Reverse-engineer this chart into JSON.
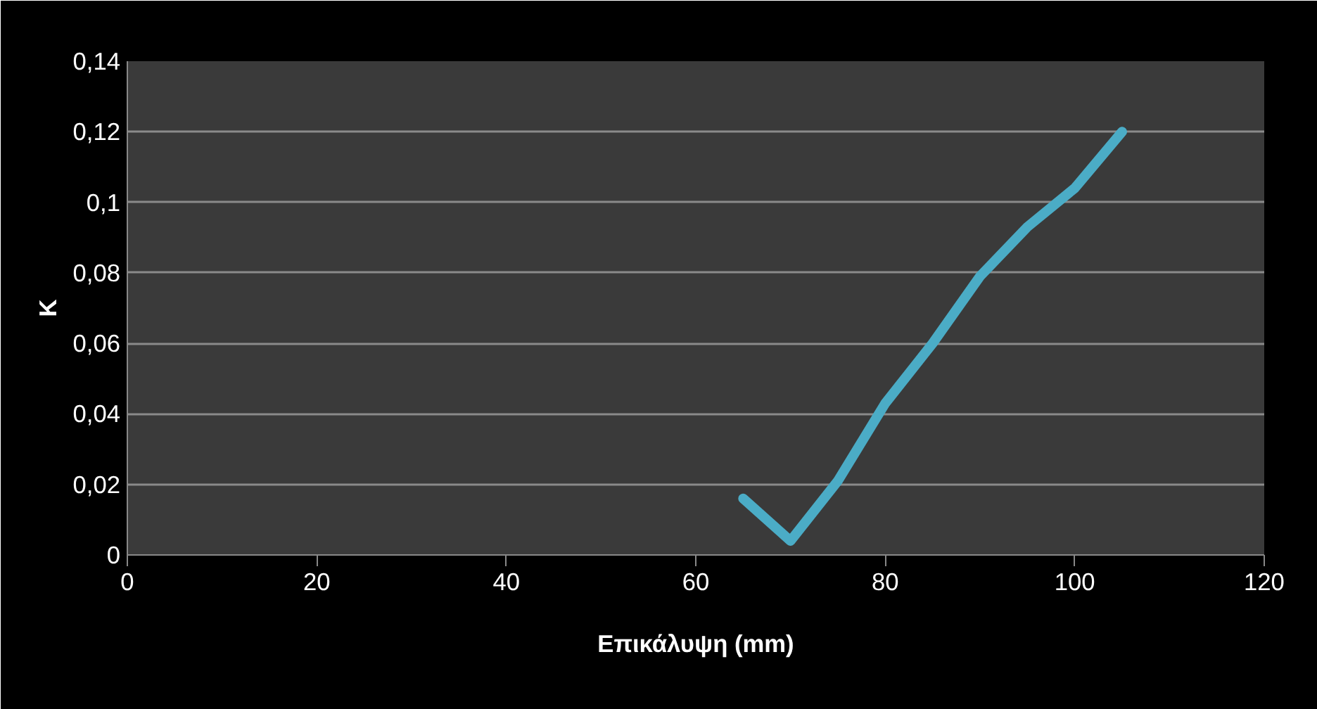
{
  "chart_data": {
    "type": "line",
    "xlabel": "Επικάλυψη (mm)",
    "ylabel": "K",
    "x": [
      65,
      70,
      75,
      80,
      85,
      90,
      95,
      100,
      105
    ],
    "series": [
      {
        "color": "#4bacc6",
        "values": [
          0.016,
          0.004,
          0.021,
          0.043,
          0.06,
          0.079,
          0.093,
          0.104,
          0.12
        ]
      }
    ],
    "xlim": [
      0,
      120
    ],
    "xticks": [
      0,
      20,
      40,
      60,
      80,
      100,
      120
    ],
    "ylim": [
      0,
      0.14
    ],
    "yticks": [
      {
        "value": 0,
        "label": "0"
      },
      {
        "value": 0.02,
        "label": "0,02"
      },
      {
        "value": 0.04,
        "label": "0,04"
      },
      {
        "value": 0.06,
        "label": "0,06"
      },
      {
        "value": 0.08,
        "label": "0,08"
      },
      {
        "value": 0.1,
        "label": "0,1"
      },
      {
        "value": 0.12,
        "label": "0,12"
      },
      {
        "value": 0.14,
        "label": "0,14"
      }
    ],
    "grid": "y",
    "marker": "none",
    "line_style": "solid"
  }
}
